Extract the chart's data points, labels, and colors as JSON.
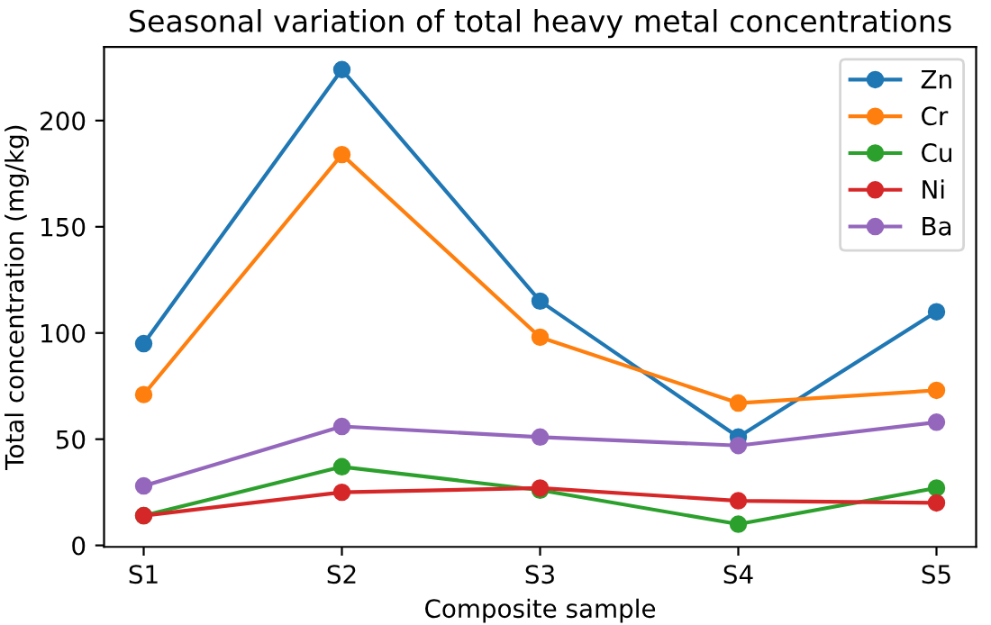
{
  "chart_data": {
    "type": "line",
    "title": "Seasonal variation of total heavy metal concentrations",
    "xlabel": "Composite sample",
    "ylabel": "Total concentration (mg/kg)",
    "categories": [
      "S1",
      "S2",
      "S3",
      "S4",
      "S5"
    ],
    "series": [
      {
        "name": "Zn",
        "color": "#1f77b4",
        "values": [
          95,
          224,
          115,
          51,
          110
        ]
      },
      {
        "name": "Cr",
        "color": "#ff7f0e",
        "values": [
          71,
          184,
          98,
          67,
          73
        ]
      },
      {
        "name": "Cu",
        "color": "#2ca02c",
        "values": [
          14,
          37,
          26,
          10,
          27
        ]
      },
      {
        "name": "Ni",
        "color": "#d62728",
        "values": [
          14,
          25,
          27,
          21,
          20
        ]
      },
      {
        "name": "Ba",
        "color": "#9467bd",
        "values": [
          28,
          56,
          51,
          47,
          58
        ]
      }
    ],
    "ylim": [
      -0.7,
      234.7
    ],
    "yticks": [
      0,
      50,
      100,
      150,
      200
    ],
    "grid": false,
    "legend": "top right",
    "marker": "circle",
    "line_style": "solid"
  }
}
